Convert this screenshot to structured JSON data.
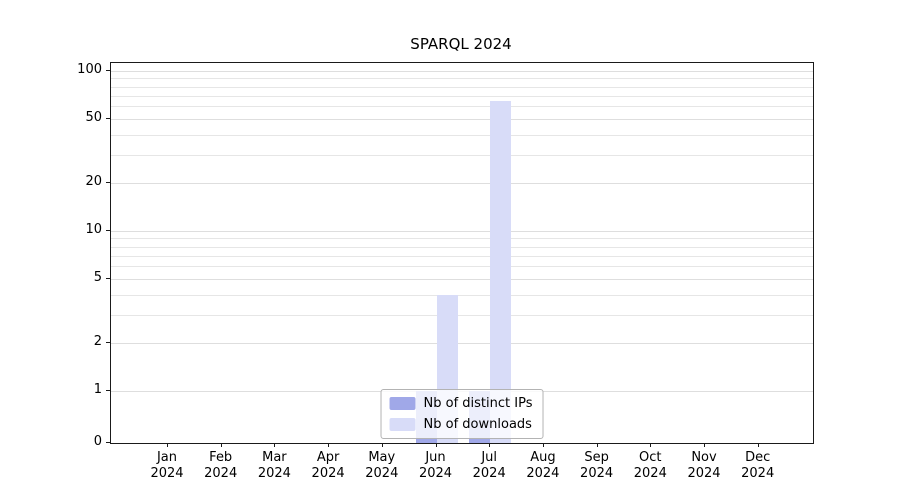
{
  "chart": {
    "title": "SPARQL 2024"
  },
  "chart_data": {
    "type": "bar",
    "title": "SPARQL 2024",
    "categories": [
      "Jan 2024",
      "Feb 2024",
      "Mar 2024",
      "Apr 2024",
      "May 2024",
      "Jun 2024",
      "Jul 2024",
      "Aug 2024",
      "Sep 2024",
      "Oct 2024",
      "Nov 2024",
      "Dec 2024"
    ],
    "series": [
      {
        "name": "Nb of distinct IPs",
        "color": "#a0a8e8",
        "values": [
          0,
          0,
          0,
          0,
          0,
          1,
          1,
          0,
          0,
          0,
          0,
          0
        ]
      },
      {
        "name": "Nb of downloads",
        "color": "#d8dcf8",
        "values": [
          0,
          0,
          0,
          0,
          0,
          4,
          65,
          0,
          0,
          0,
          0,
          0
        ]
      }
    ],
    "yticks": [
      0,
      1,
      2,
      5,
      10,
      20,
      50,
      100
    ],
    "yscale": "symlog",
    "ylim": [
      0,
      115
    ],
    "xlabel": "",
    "ylabel": "",
    "grid": "horizontal-minor",
    "legend_position": "bottom-center"
  }
}
